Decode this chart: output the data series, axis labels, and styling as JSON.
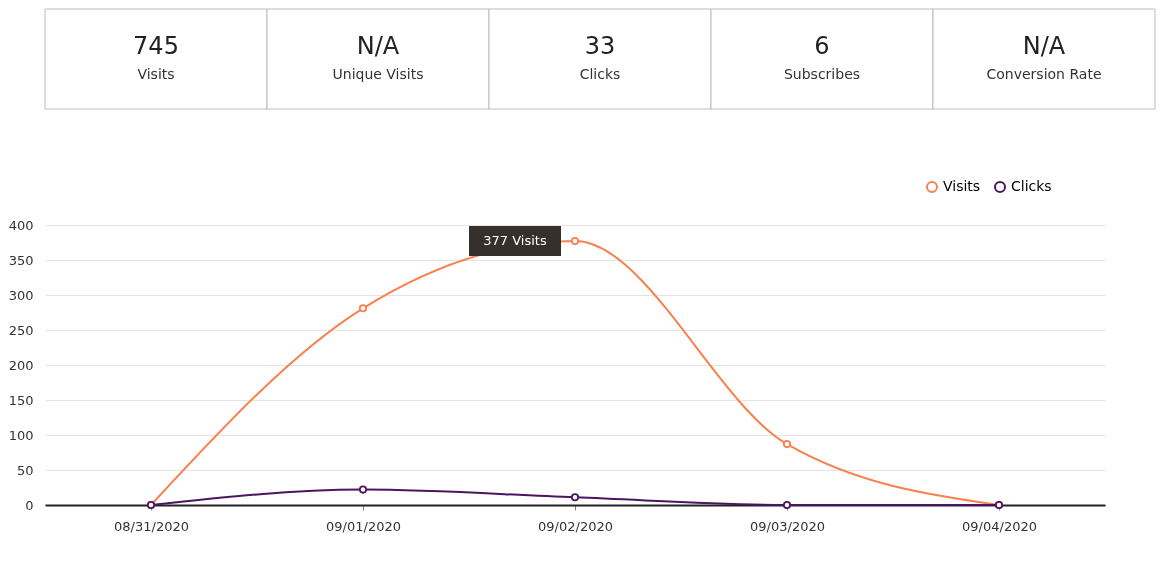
{
  "chart_data": [
    {
      "type": "other",
      "annotations": [
        "745",
        "Visits",
        "N/A",
        "Unique Visits",
        "33",
        "Clicks",
        "6",
        "Subscribes",
        "N/A",
        "Conversion Rate"
      ]
    },
    {
      "type": "line",
      "categories": [
        "08/31/2020",
        "09/01/2020",
        "09/02/2020",
        "09/03/2020",
        "09/04/2020"
      ],
      "series": [
        {
          "name": "Visits",
          "color": "#f9804f",
          "values": [
            0,
            281,
            377,
            87,
            0
          ]
        },
        {
          "name": "Clicks",
          "color": "#4b1561",
          "values": [
            0,
            22,
            11,
            0,
            0
          ]
        }
      ],
      "ylim": [
        0,
        400
      ],
      "yticks": [
        0,
        50,
        100,
        150,
        200,
        250,
        300,
        350,
        400
      ],
      "grid": "y",
      "legend": "top right",
      "marker": "circle",
      "annotations": [
        {
          "text": "377 Visits",
          "x": "09/02/2020",
          "y": 377
        }
      ]
    }
  ]
}
